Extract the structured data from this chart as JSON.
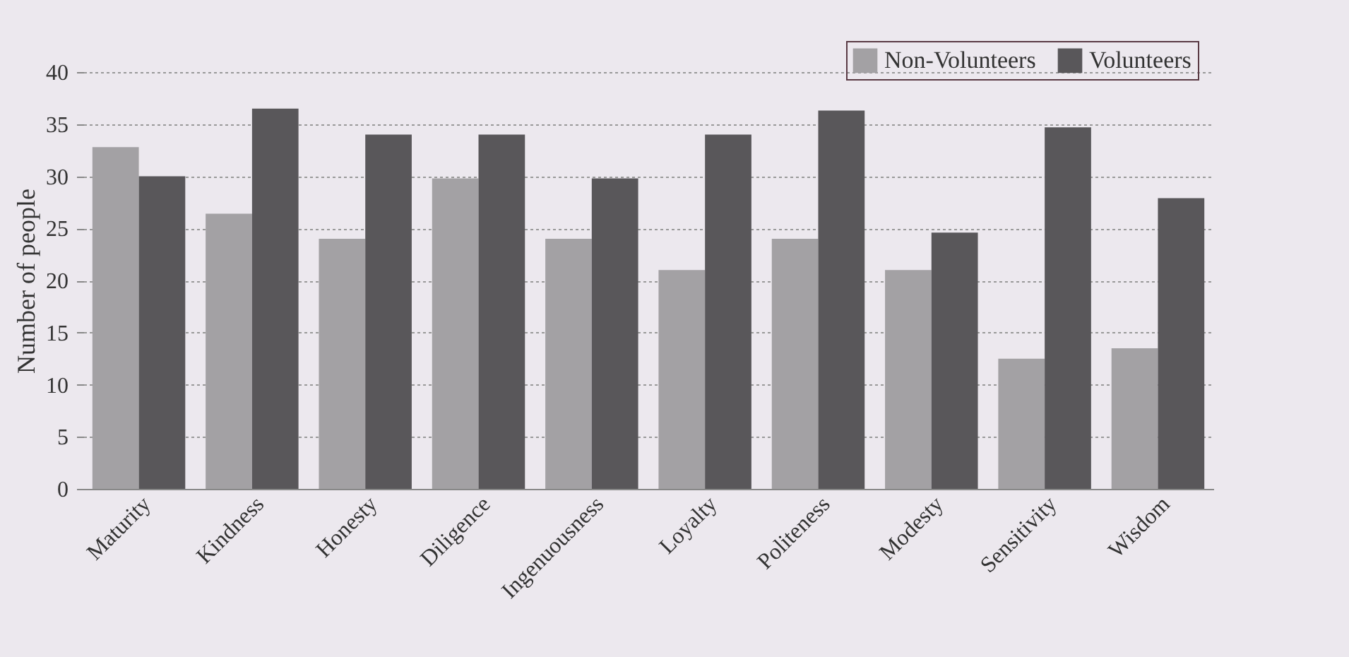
{
  "chart_data": {
    "type": "bar",
    "ylabel": "Number of people",
    "categories": [
      "Maturity",
      "Kindness",
      "Honesty",
      "Diligence",
      "Ingenuousness",
      "Loyalty",
      "Politeness",
      "Modesty",
      "Sensitivity",
      "Wisdom"
    ],
    "series": [
      {
        "name": "Non-Volunteers",
        "color": "#a3a1a4",
        "values": [
          32.8,
          26.4,
          24,
          29.8,
          24,
          21,
          24,
          21,
          12.5,
          13.5
        ]
      },
      {
        "name": "Volunteers",
        "color": "#59575a",
        "values": [
          30,
          36.5,
          34,
          34,
          29.8,
          34,
          36.3,
          24.6,
          34.7,
          27.9
        ]
      }
    ],
    "ylim": [
      0,
      40
    ],
    "yticks": [
      0,
      5,
      10,
      15,
      20,
      25,
      30,
      35,
      40
    ],
    "grid": "y",
    "legend": "top right"
  }
}
